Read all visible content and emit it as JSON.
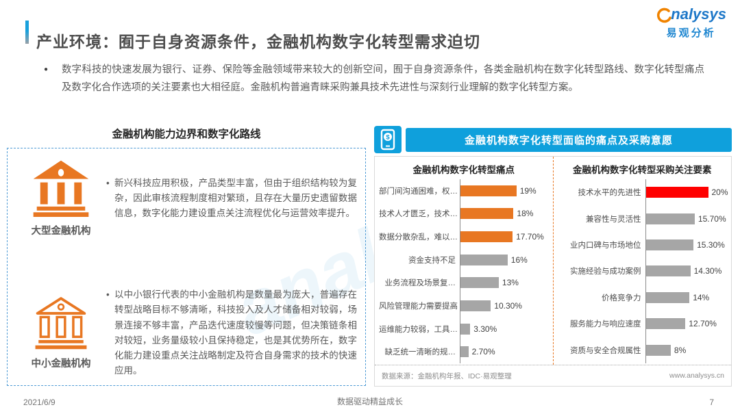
{
  "header": {
    "title": "产业环境：囿于自身资源条件，金融机构数字化转型需求迫切",
    "logo": {
      "brand": "analysys",
      "brand_cn": "易观分析"
    }
  },
  "intro": {
    "bullet_text": "数字科技的快速发展为银行、证券、保险等金融领域带来较大的创新空间，囿于自身资源条件，各类金融机构在数字化转型路线、数字化转型痛点及数字化合作选项的关注要素也大相径庭。金融机构普遍青睐采购兼具技术先进性与深刻行业理解的数字化转型方案。"
  },
  "left_panel": {
    "title": "金融机构能力边界和数字化路线",
    "blocks": [
      {
        "icon": "bank-solid-icon",
        "label": "大型金融机构",
        "text": "新兴科技应用积极，产品类型丰富，但由于组织结构较为复杂，因此审核流程制度相对繁琐，且存在大量历史遗留数据信息，数字化能力建设重点关注流程优化与运营效率提升。"
      },
      {
        "icon": "bank-outline-icon",
        "label": "中小金融机构",
        "text": "以中小银行代表的中小金融机构是数量最为庞大，普遍存在转型战略目标不够清晰，科技投入及人才储备相对较弱，场景连接不够丰富，产品迭代速度较慢等问题，但决策链条相对较短，业务量级较小且保持稳定，也是其优势所在，数字化能力建设重点关注战略制定及符合自身需求的技术的快速应用。"
      }
    ]
  },
  "right_panel": {
    "banner": "金融机构数字化转型面临的痛点及采购意愿",
    "source": "数据来源：金融机构年报、IDC·易观整理",
    "website": "www.analysys.cn"
  },
  "chart_data": [
    {
      "type": "bar",
      "orientation": "horizontal",
      "title": "金融机构数字化转型痛点",
      "categories": [
        "部门间沟通困难，权…",
        "技术人才匮乏，技术…",
        "数据分散杂乱，难以…",
        "资金支持不足",
        "业务流程及场景复…",
        "风险管理能力需要提高",
        "运维能力较弱，工具…",
        "缺乏统一清晰的规…"
      ],
      "values": [
        19,
        18,
        17.7,
        16,
        13,
        10.3,
        3.3,
        2.7
      ],
      "labels": [
        "19%",
        "18%",
        "17.70%",
        "16%",
        "13%",
        "10.30%",
        "3.30%",
        "2.70%"
      ],
      "bar_colors": [
        "#E87722",
        "#E87722",
        "#E87722",
        "#A6A6A6",
        "#A6A6A6",
        "#A6A6A6",
        "#A6A6A6",
        "#A6A6A6"
      ],
      "xlim": [
        0,
        20
      ],
      "grid": false,
      "legend": false
    },
    {
      "type": "bar",
      "orientation": "horizontal",
      "title": "金融机构数字化转型采购关注要素",
      "categories": [
        "技术水平的先进性",
        "兼容性与灵活性",
        "业内口碑与市场地位",
        "实施经验与成功案例",
        "价格竞争力",
        "服务能力与响应速度",
        "资质与安全合规属性"
      ],
      "values": [
        20,
        15.7,
        15.3,
        14.3,
        14,
        12.7,
        8
      ],
      "labels": [
        "20%",
        "15.70%",
        "15.30%",
        "14.30%",
        "14%",
        "12.70%",
        "8%"
      ],
      "bar_colors": [
        "#FF0000",
        "#A6A6A6",
        "#A6A6A6",
        "#A6A6A6",
        "#A6A6A6",
        "#A6A6A6",
        "#A6A6A6"
      ],
      "xlim": [
        0,
        22
      ],
      "grid": false,
      "legend": false
    }
  ],
  "footer": {
    "date": "2021/6/9",
    "slogan": "数据驱动精益成长",
    "page": "7"
  },
  "watermark": {
    "brand": "analysys",
    "brand_cn": "易观分析"
  },
  "colors": {
    "accent_orange": "#E87722",
    "bar_gray": "#A6A6A6",
    "highlight_red": "#FF0000",
    "banner_blue": "#0FA0DC",
    "dashed_border_blue": "#4F9BD5",
    "brand_blue": "#1E78C8",
    "brand_orange": "#F08300"
  }
}
